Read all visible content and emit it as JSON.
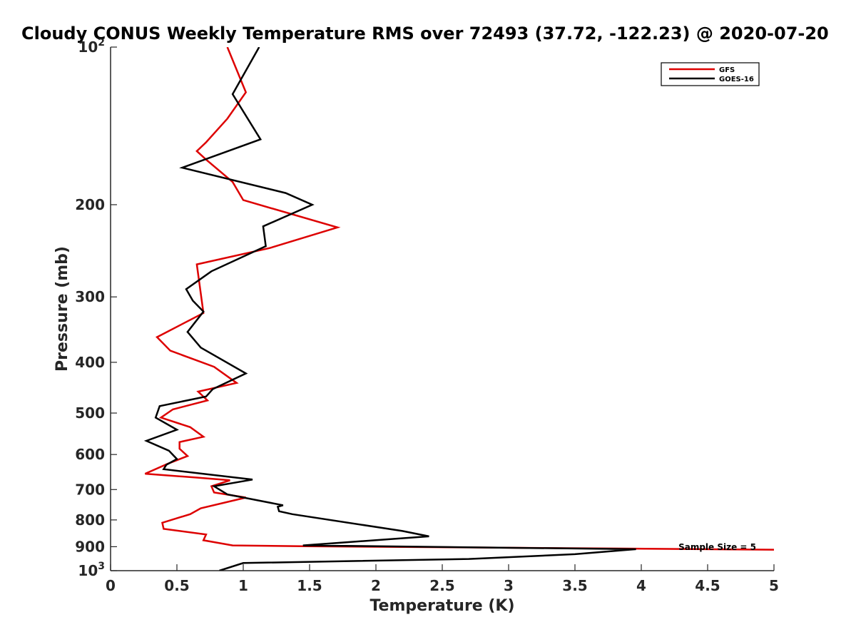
{
  "chart_data": {
    "type": "line",
    "title": "Cloudy CONUS Weekly Temperature RMS over 72493 (37.72, -122.23) @ 2020-07-20",
    "xlabel": "Temperature (K)",
    "ylabel": "Pressure (mb)",
    "xlim": [
      0,
      5
    ],
    "ylim": [
      100,
      1000
    ],
    "y_scale": "log",
    "y_reversed": true,
    "grid": false,
    "legend_position": "top-right",
    "x_ticks": [
      0,
      0.5,
      1,
      1.5,
      2,
      2.5,
      3,
      3.5,
      4,
      4.5,
      5
    ],
    "x_tick_labels": [
      "0",
      "0.5",
      "1",
      "1.5",
      "2",
      "2.5",
      "3",
      "3.5",
      "4",
      "4.5",
      "5"
    ],
    "y_ticks": [
      100,
      200,
      300,
      400,
      500,
      600,
      700,
      800,
      900,
      1000
    ],
    "y_tick_labels": [
      "10^2",
      "200",
      "300",
      "400",
      "500",
      "600",
      "700",
      "800",
      "900",
      "10^3"
    ],
    "annotation": "Sample Size = 5",
    "series": [
      {
        "name": "GFS",
        "color": "#dd0000",
        "points": [
          [
            0.88,
            100
          ],
          [
            1.02,
            122
          ],
          [
            0.88,
            137
          ],
          [
            0.72,
            152
          ],
          [
            0.65,
            158
          ],
          [
            0.72,
            164
          ],
          [
            0.92,
            181
          ],
          [
            1.0,
            196
          ],
          [
            1.71,
            221
          ],
          [
            1.2,
            242
          ],
          [
            0.65,
            260
          ],
          [
            0.7,
            322
          ],
          [
            0.35,
            358
          ],
          [
            0.45,
            380
          ],
          [
            0.78,
            408
          ],
          [
            0.95,
            438
          ],
          [
            0.66,
            455
          ],
          [
            0.73,
            473
          ],
          [
            0.47,
            492
          ],
          [
            0.38,
            510
          ],
          [
            0.6,
            532
          ],
          [
            0.7,
            555
          ],
          [
            0.52,
            568
          ],
          [
            0.52,
            585
          ],
          [
            0.58,
            604
          ],
          [
            0.43,
            625
          ],
          [
            0.26,
            653
          ],
          [
            0.65,
            664
          ],
          [
            0.9,
            672
          ],
          [
            0.76,
            690
          ],
          [
            0.78,
            709
          ],
          [
            1.02,
            725
          ],
          [
            0.68,
            760
          ],
          [
            0.6,
            780
          ],
          [
            0.39,
            810
          ],
          [
            0.4,
            832
          ],
          [
            0.72,
            853
          ],
          [
            0.7,
            875
          ],
          [
            0.92,
            895
          ],
          [
            1.45,
            898
          ],
          [
            5.0,
            912
          ]
        ]
      },
      {
        "name": "GOES-16",
        "color": "#000000",
        "points": [
          [
            1.12,
            100
          ],
          [
            0.92,
            123
          ],
          [
            1.13,
            150
          ],
          [
            0.54,
            170
          ],
          [
            1.32,
            190
          ],
          [
            1.52,
            200
          ],
          [
            1.15,
            220
          ],
          [
            1.17,
            240
          ],
          [
            0.76,
            268
          ],
          [
            0.57,
            290
          ],
          [
            0.62,
            305
          ],
          [
            0.7,
            320
          ],
          [
            0.58,
            350
          ],
          [
            0.68,
            375
          ],
          [
            1.02,
            420
          ],
          [
            0.77,
            450
          ],
          [
            0.72,
            465
          ],
          [
            0.37,
            485
          ],
          [
            0.34,
            510
          ],
          [
            0.5,
            538
          ],
          [
            0.27,
            565
          ],
          [
            0.44,
            590
          ],
          [
            0.5,
            612
          ],
          [
            0.42,
            628
          ],
          [
            0.4,
            640
          ],
          [
            1.07,
            670
          ],
          [
            0.78,
            690
          ],
          [
            0.88,
            715
          ],
          [
            1.3,
            750
          ],
          [
            1.26,
            755
          ],
          [
            1.27,
            770
          ],
          [
            1.37,
            780
          ],
          [
            2.2,
            840
          ],
          [
            2.4,
            860
          ],
          [
            1.45,
            895
          ],
          [
            3.96,
            910
          ],
          [
            3.5,
            930
          ],
          [
            2.7,
            950
          ],
          [
            1.0,
            967
          ],
          [
            0.82,
            1000
          ]
        ]
      }
    ]
  }
}
